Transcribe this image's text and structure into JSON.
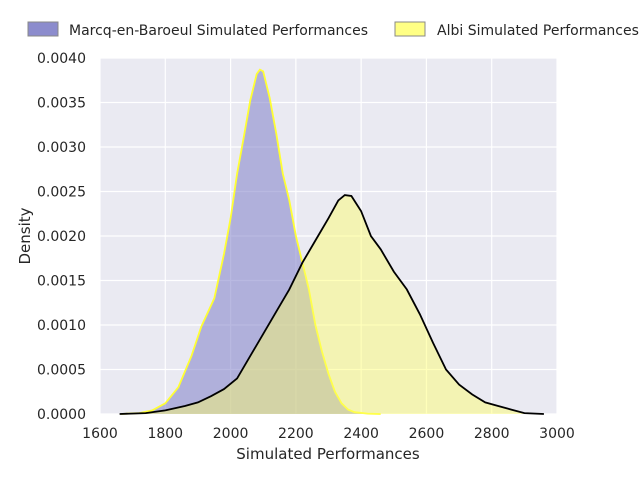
{
  "chart_data": {
    "type": "area",
    "xlabel": "Simulated Performances",
    "ylabel": "Density",
    "xlim": [
      1600,
      3000
    ],
    "ylim": [
      0,
      0.004
    ],
    "x_ticks": [
      {
        "value": 1600,
        "label": "1600"
      },
      {
        "value": 1800,
        "label": "1800"
      },
      {
        "value": 2000,
        "label": "2000"
      },
      {
        "value": 2200,
        "label": "2200"
      },
      {
        "value": 2400,
        "label": "2400"
      },
      {
        "value": 2600,
        "label": "2600"
      },
      {
        "value": 2800,
        "label": "2800"
      },
      {
        "value": 3000,
        "label": "3000"
      }
    ],
    "y_ticks": [
      {
        "value": 0,
        "label": "0.0000"
      },
      {
        "value": 0.0005,
        "label": "0.0005"
      },
      {
        "value": 0.001,
        "label": "0.0010"
      },
      {
        "value": 0.0015,
        "label": "0.0015"
      },
      {
        "value": 0.002,
        "label": "0.0020"
      },
      {
        "value": 0.0025,
        "label": "0.0025"
      },
      {
        "value": 0.003,
        "label": "0.0030"
      },
      {
        "value": 0.0035,
        "label": "0.0035"
      },
      {
        "value": 0.004,
        "label": "0.0040"
      }
    ],
    "grid": true,
    "legend_position": "top",
    "series": [
      {
        "name": "Marcq-en-Baroeul Simulated Performances",
        "fill_color": "#8080c8",
        "fill_opacity": 0.55,
        "line_color": "#ffff33",
        "points": [
          [
            1665,
            0
          ],
          [
            1720,
            1e-05
          ],
          [
            1760,
            4e-05
          ],
          [
            1800,
            0.00012
          ],
          [
            1840,
            0.0003
          ],
          [
            1880,
            0.00065
          ],
          [
            1910,
            0.00098
          ],
          [
            1950,
            0.0013
          ],
          [
            1980,
            0.0018
          ],
          [
            2000,
            0.0022
          ],
          [
            2020,
            0.0027
          ],
          [
            2040,
            0.0031
          ],
          [
            2060,
            0.00352
          ],
          [
            2080,
            0.00382
          ],
          [
            2090,
            0.00387
          ],
          [
            2100,
            0.00385
          ],
          [
            2120,
            0.00355
          ],
          [
            2140,
            0.00315
          ],
          [
            2160,
            0.0027
          ],
          [
            2180,
            0.0024
          ],
          [
            2200,
            0.002
          ],
          [
            2220,
            0.0017
          ],
          [
            2240,
            0.0014
          ],
          [
            2260,
            0.001
          ],
          [
            2280,
            0.0007
          ],
          [
            2300,
            0.00045
          ],
          [
            2320,
            0.00025
          ],
          [
            2340,
            0.00012
          ],
          [
            2360,
            5e-05
          ],
          [
            2380,
            2e-05
          ],
          [
            2420,
            5e-06
          ],
          [
            2460,
            0
          ]
        ]
      },
      {
        "name": "Albi Simulated Performances",
        "fill_color": "#ffff66",
        "fill_opacity": 0.45,
        "line_color": "#000000",
        "points": [
          [
            1660,
            0
          ],
          [
            1740,
            1e-05
          ],
          [
            1800,
            4e-05
          ],
          [
            1860,
            9e-05
          ],
          [
            1900,
            0.00013
          ],
          [
            1940,
            0.0002
          ],
          [
            1980,
            0.00028
          ],
          [
            2020,
            0.0004
          ],
          [
            2060,
            0.00065
          ],
          [
            2100,
            0.0009
          ],
          [
            2140,
            0.00115
          ],
          [
            2180,
            0.0014
          ],
          [
            2220,
            0.0017
          ],
          [
            2260,
            0.00195
          ],
          [
            2300,
            0.0022
          ],
          [
            2330,
            0.0024
          ],
          [
            2350,
            0.00246
          ],
          [
            2370,
            0.00245
          ],
          [
            2400,
            0.00228
          ],
          [
            2430,
            0.002
          ],
          [
            2460,
            0.00185
          ],
          [
            2500,
            0.0016
          ],
          [
            2540,
            0.0014
          ],
          [
            2580,
            0.00112
          ],
          [
            2620,
            0.0008
          ],
          [
            2660,
            0.0005
          ],
          [
            2700,
            0.00033
          ],
          [
            2740,
            0.00022
          ],
          [
            2780,
            0.00013
          ],
          [
            2820,
            9e-05
          ],
          [
            2860,
            5e-05
          ],
          [
            2900,
            1e-05
          ],
          [
            2960,
            0
          ]
        ]
      }
    ]
  }
}
